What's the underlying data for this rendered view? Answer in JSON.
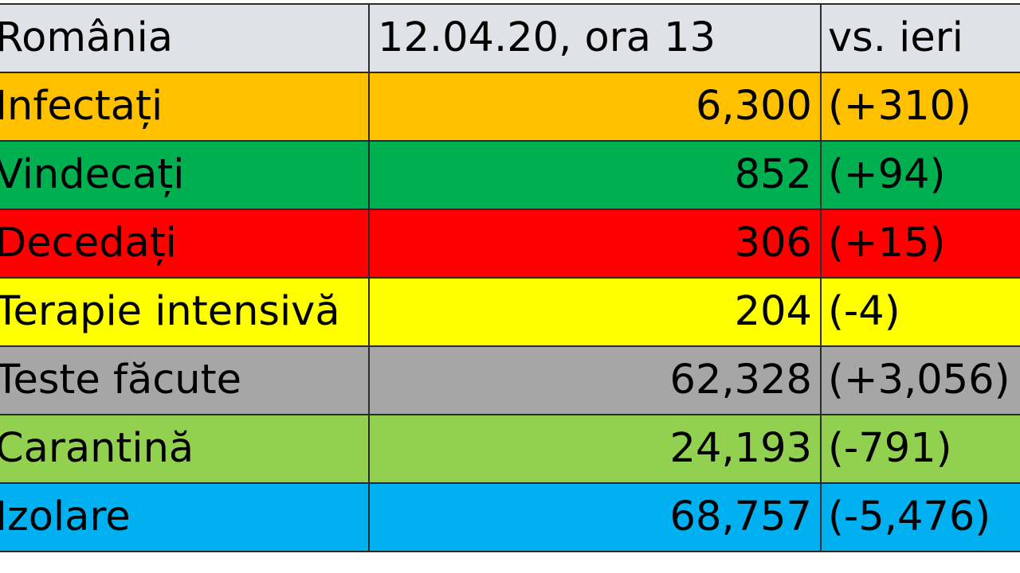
{
  "header": {
    "country": "România",
    "date": "12.04.20, ora 13",
    "comparison": "vs. ieri"
  },
  "rows": [
    {
      "label": "Infectați",
      "value": "6,300",
      "delta": "(+310)",
      "color": "#ffc000"
    },
    {
      "label": "Vindecați",
      "value": "852",
      "delta": "(+94)",
      "color": "#00b050"
    },
    {
      "label": "Decedați",
      "value": "306",
      "delta": "(+15)",
      "color": "#ff0000"
    },
    {
      "label": "Terapie intensivă",
      "value": "204",
      "delta": "(-4)",
      "color": "#ffff00"
    },
    {
      "label": "Teste făcute",
      "value": "62,328",
      "delta": "(+3,056)",
      "color": "#a6a6a6"
    },
    {
      "label": "Carantină",
      "value": "24,193",
      "delta": "(-791)",
      "color": "#92d050"
    },
    {
      "label": "Izolare",
      "value": "68,757",
      "delta": "(-5,476)",
      "color": "#00b0f0"
    }
  ]
}
